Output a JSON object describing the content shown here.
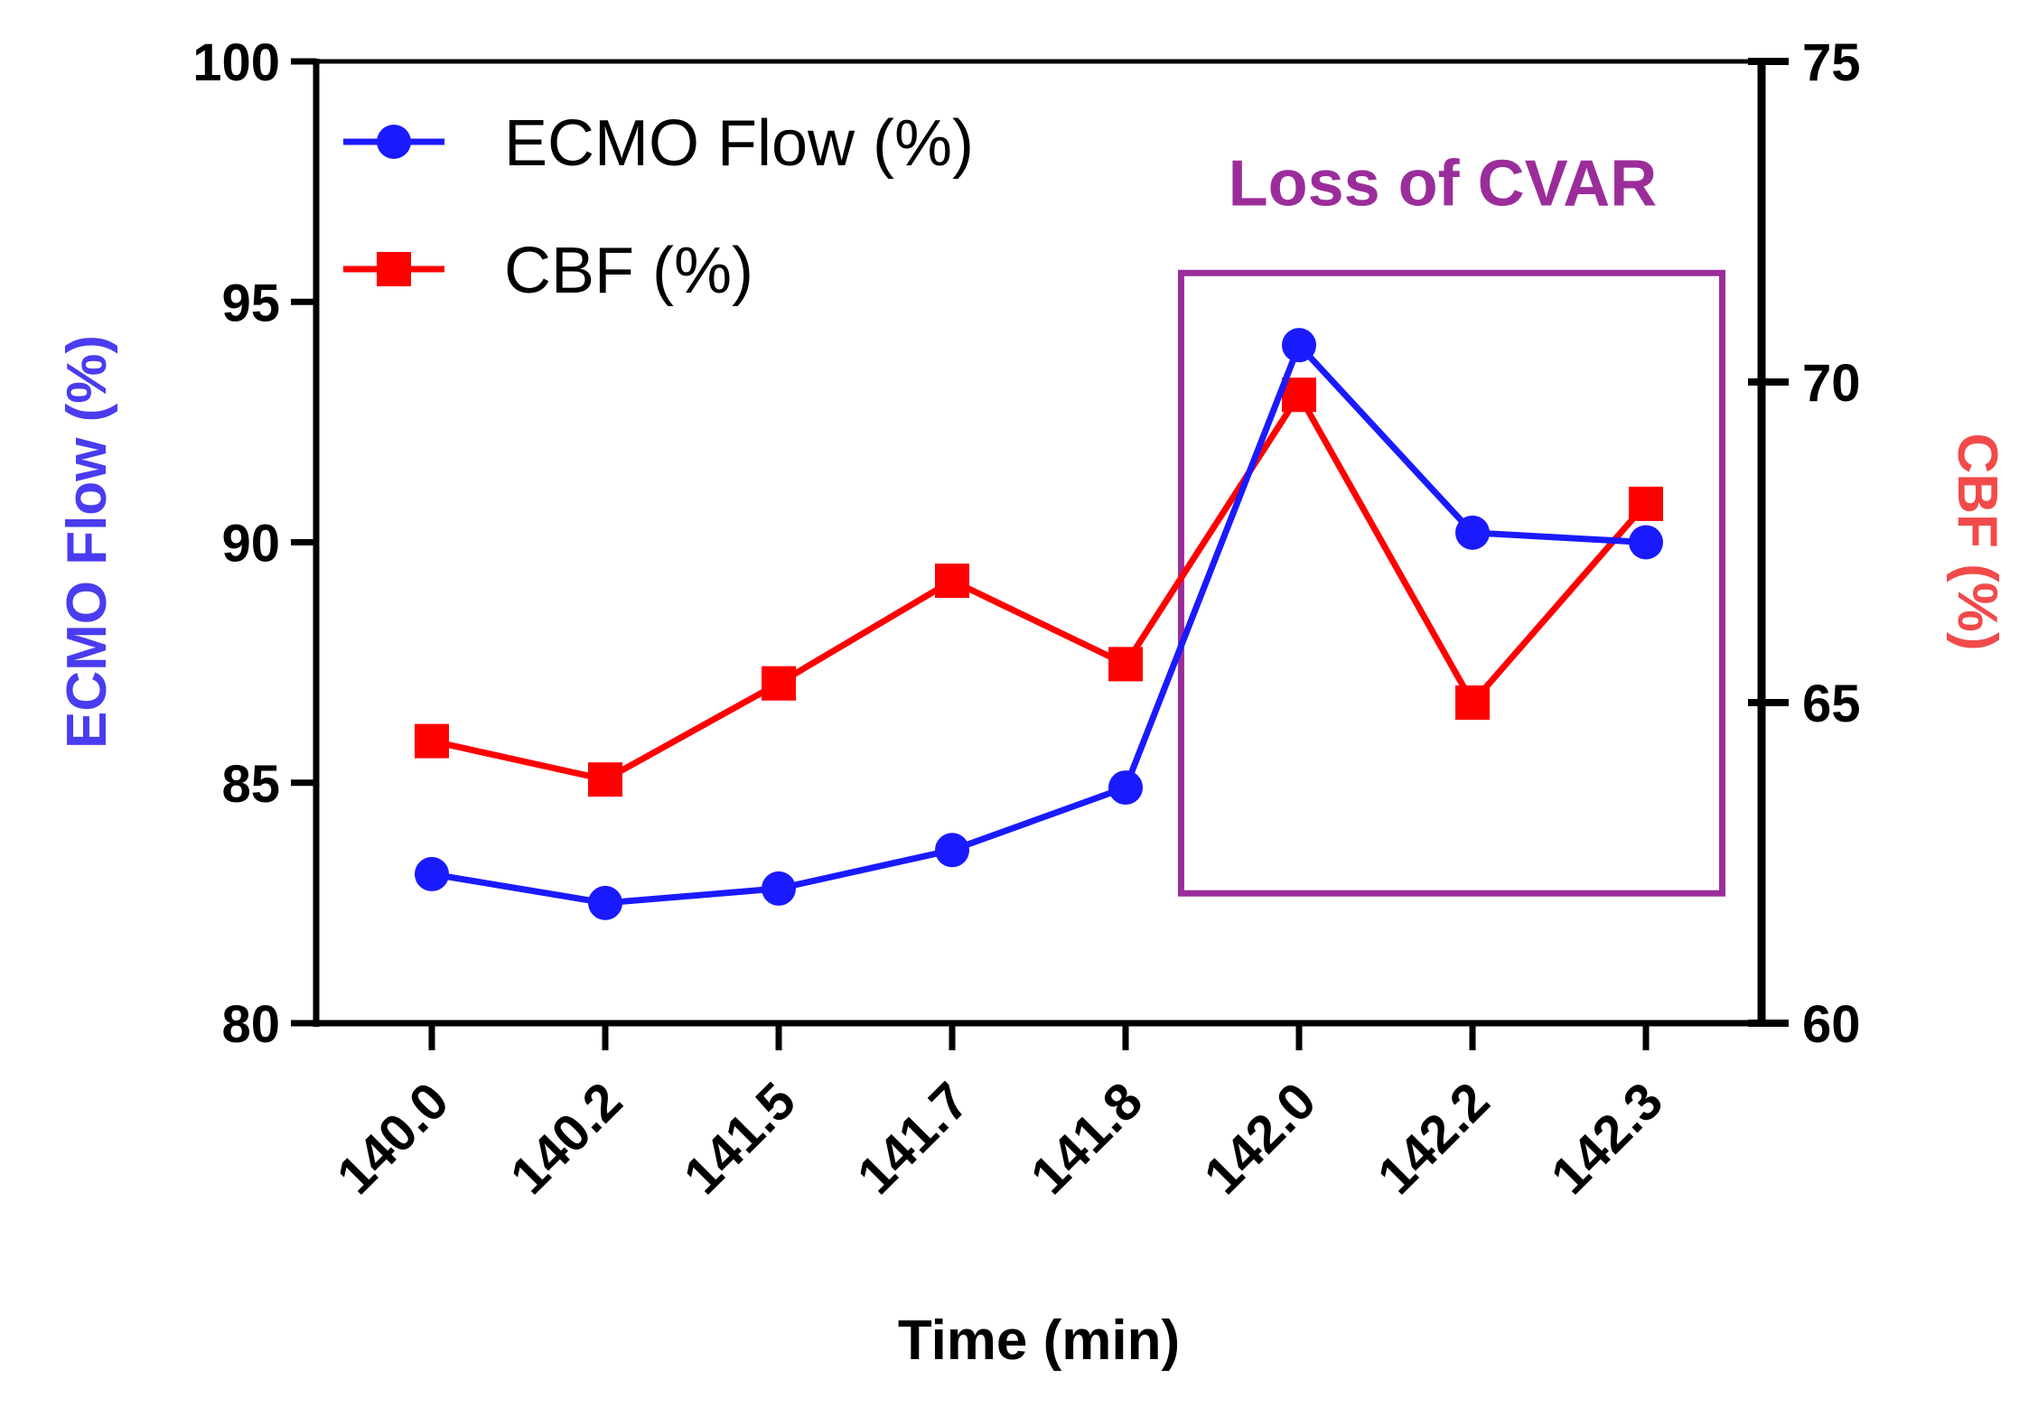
{
  "chart_data": {
    "type": "line",
    "x_labels": [
      "140.0",
      "140.2",
      "141.5",
      "141.7",
      "141.8",
      "142.0",
      "142.2",
      "142.3"
    ],
    "xlabel": "Time (min)",
    "y_left": {
      "label": "ECMO Flow (%)",
      "range": [
        80,
        100
      ],
      "ticks": [
        "80",
        "85",
        "90",
        "95",
        "100"
      ],
      "color": "#4a3cf0"
    },
    "y_right": {
      "label": "CBF (%)",
      "range": [
        60,
        75
      ],
      "ticks": [
        "60",
        "65",
        "70",
        "75"
      ],
      "color": "#f24a4a"
    },
    "series": [
      {
        "name": "ECMO Flow (%)",
        "axis": "left",
        "marker": "circle",
        "color": "#1a1aff",
        "values": [
          83.1,
          82.5,
          82.8,
          83.6,
          84.9,
          94.1,
          90.2,
          90.0
        ]
      },
      {
        "name": "CBF (%)",
        "axis": "right",
        "marker": "square",
        "color": "#ff0000",
        "values": [
          64.4,
          63.8,
          65.3,
          66.9,
          65.6,
          69.8,
          65.0,
          68.1
        ]
      }
    ],
    "annotation": {
      "text": "Loss of CVAR",
      "color": "#9b2d9b",
      "x_start": "142.0",
      "x_end": "142.3"
    },
    "legend_position": "top-left",
    "grid": false
  }
}
